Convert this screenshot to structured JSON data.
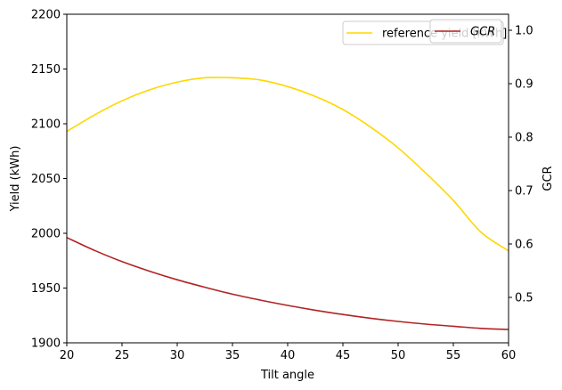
{
  "chart_data": {
    "type": "line",
    "title": "",
    "xlabel": "Tilt angle",
    "ylabel": "Yield (kWh)",
    "y2label": "GCR",
    "xlim": [
      20,
      60
    ],
    "ylim": [
      1900,
      2200
    ],
    "y2lim": [
      0.415,
      1.03
    ],
    "xticks": [
      "20",
      "25",
      "30",
      "35",
      "40",
      "45",
      "50",
      "55",
      "60"
    ],
    "yticks": [
      "1900",
      "1950",
      "2000",
      "2050",
      "2100",
      "2150",
      "2200"
    ],
    "y2ticks": [
      "0.5",
      "0.6",
      "0.7",
      "0.8",
      "0.9",
      "1.0"
    ],
    "grid": false,
    "series": [
      {
        "name": "reference yield [kWh]",
        "axis": "left",
        "color": "#ffd700",
        "x": [
          20,
          22.5,
          25,
          27.5,
          30,
          32.5,
          35,
          37.5,
          40,
          42.5,
          45,
          47.5,
          50,
          52.5,
          55,
          57.5,
          60
        ],
        "y": [
          2093,
          2108,
          2121,
          2131,
          2138,
          2142,
          2142,
          2140,
          2134,
          2125,
          2113,
          2097,
          2078,
          2055,
          2030,
          2001,
          1984
        ]
      },
      {
        "name": "GCR",
        "axis": "right",
        "color": "#b22222",
        "x": [
          20,
          22.5,
          25,
          27.5,
          30,
          32.5,
          35,
          37.5,
          40,
          42.5,
          45,
          47.5,
          50,
          52.5,
          55,
          57.5,
          60
        ],
        "y": [
          0.612,
          0.588,
          0.567,
          0.549,
          0.533,
          0.519,
          0.506,
          0.495,
          0.485,
          0.476,
          0.468,
          0.461,
          0.455,
          0.45,
          0.446,
          0.442,
          0.44
        ]
      }
    ],
    "legends": [
      {
        "position": "top-right",
        "entries": [
          "reference yield [kWh]"
        ]
      },
      {
        "position": "top-right",
        "entries": [
          "GCR"
        ]
      }
    ]
  }
}
